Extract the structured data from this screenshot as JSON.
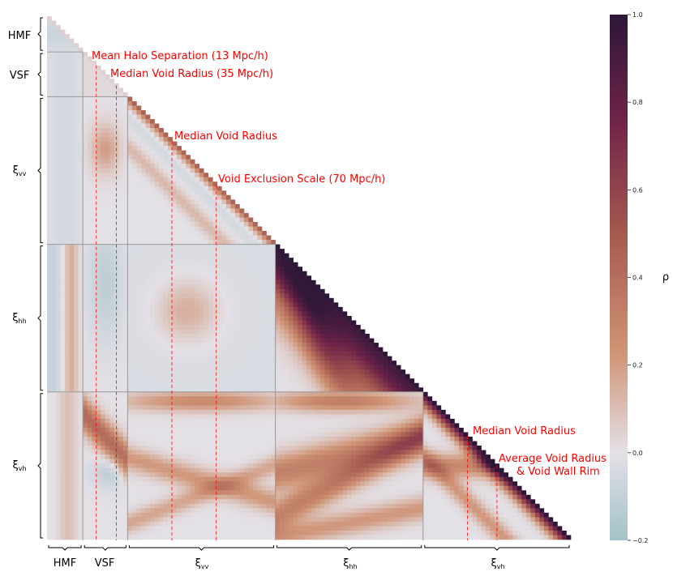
{
  "chart_data": {
    "type": "heatmap",
    "title": "",
    "description_kind": "lower-triangular correlation matrix of stacked data vectors",
    "blocks": [
      {
        "key": "hmf",
        "label": "HMF",
        "size": 8
      },
      {
        "key": "vsf",
        "label": "VSF",
        "size": 10
      },
      {
        "key": "xi_vv",
        "label": "ξ",
        "sub": "vv",
        "size": 33
      },
      {
        "key": "xi_hh",
        "label": "ξ",
        "sub": "hh",
        "size": 33
      },
      {
        "key": "xi_vh",
        "label": "ξ",
        "sub": "vh",
        "size": 33
      }
    ],
    "colorbar": {
      "label": "ρ",
      "min": -0.2,
      "max": 1.0,
      "ticks": [
        "1.0",
        "0.8",
        "0.6",
        "0.4",
        "0.2",
        "0.0",
        "−0.2"
      ],
      "tick_values": [
        1.0,
        0.8,
        0.6,
        0.4,
        0.2,
        0.0,
        -0.2
      ],
      "colors": [
        "#a3c2c9",
        "#e3e0e6",
        "#cf9375",
        "#a65a50",
        "#6e2348",
        "#2c1737"
      ]
    },
    "annotations": [
      {
        "text": "Mean Halo Separation (13 Mpc/h)",
        "block": "vsf",
        "position": "top-right"
      },
      {
        "text": "Median Void Radius (35 Mpc/h)",
        "block": "vsf",
        "position": "top-right"
      },
      {
        "text": "Median Void Radius",
        "block": "xi_vv",
        "position": "diagonal"
      },
      {
        "text": "Void Exclusion Scale (70 Mpc/h)",
        "block": "xi_vv",
        "position": "diagonal"
      },
      {
        "text": "Median Void Radius",
        "block": "xi_vh",
        "position": "diagonal"
      },
      {
        "text": "Average Void Radius",
        "block": "xi_vh",
        "position": "diagonal"
      },
      {
        "text": "& Void Wall Rim",
        "block": "xi_vh",
        "position": "diagonal"
      }
    ],
    "marker_lines": {
      "color": "#ff0000",
      "style": "dashed",
      "vsf_fractions": [
        0.3,
        0.75
      ],
      "xi_vv_fractions": [
        0.3,
        0.6
      ],
      "xi_vh_fractions": [
        0.3,
        0.5
      ]
    },
    "block_dividers": {
      "color": "#999999",
      "style": "solid"
    },
    "grid": false
  }
}
